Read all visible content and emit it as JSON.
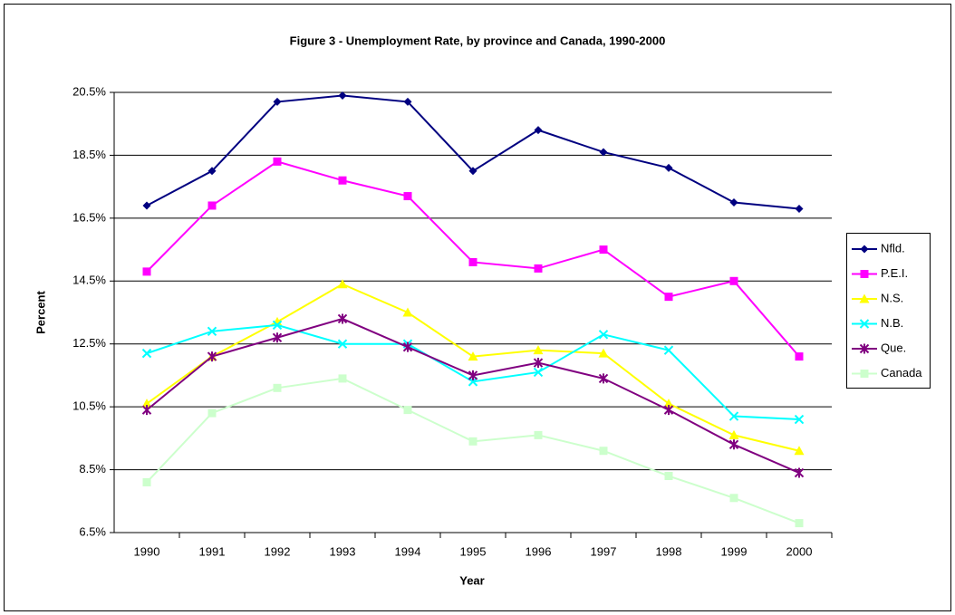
{
  "chart_data": {
    "type": "line",
    "title": "Figure 3 - Unemployment Rate, by province and Canada, 1990-2000",
    "xlabel": "Year",
    "ylabel": "Percent",
    "categories": [
      "1990",
      "1991",
      "1992",
      "1993",
      "1994",
      "1995",
      "1996",
      "1997",
      "1998",
      "1999",
      "2000"
    ],
    "ylim": [
      6.5,
      20.5
    ],
    "yticks": [
      {
        "value": 6.5,
        "label": "6.5%"
      },
      {
        "value": 8.5,
        "label": "8.5%"
      },
      {
        "value": 10.5,
        "label": "10.5%"
      },
      {
        "value": 12.5,
        "label": "12.5%"
      },
      {
        "value": 14.5,
        "label": "14.5%"
      },
      {
        "value": 16.5,
        "label": "16.5%"
      },
      {
        "value": 18.5,
        "label": "18.5%"
      },
      {
        "value": 20.5,
        "label": "20.5%"
      }
    ],
    "grid": true,
    "legend": "right",
    "series": [
      {
        "name": "Nfld.",
        "color": "#000080",
        "marker": "diamond",
        "values": [
          16.9,
          18.0,
          20.2,
          20.4,
          20.2,
          18.0,
          19.3,
          18.6,
          18.1,
          17.0,
          16.8
        ]
      },
      {
        "name": "P.E.I.",
        "color": "#ff00ff",
        "marker": "square",
        "values": [
          14.8,
          16.9,
          18.3,
          17.7,
          17.2,
          15.1,
          14.9,
          15.5,
          14.0,
          14.5,
          12.1
        ]
      },
      {
        "name": "N.S.",
        "color": "#ffff00",
        "marker": "triangle",
        "values": [
          10.6,
          12.1,
          13.2,
          14.4,
          13.5,
          12.1,
          12.3,
          12.2,
          10.6,
          9.6,
          9.1
        ]
      },
      {
        "name": "N.B.",
        "color": "#00ffff",
        "marker": "x",
        "values": [
          12.2,
          12.9,
          13.1,
          12.5,
          12.5,
          11.3,
          11.6,
          12.8,
          12.3,
          10.2,
          10.1
        ]
      },
      {
        "name": "Que.",
        "color": "#800080",
        "marker": "star",
        "values": [
          10.4,
          12.1,
          12.7,
          13.3,
          12.4,
          11.5,
          11.9,
          11.4,
          10.4,
          9.3,
          8.4
        ]
      },
      {
        "name": "Canada",
        "color": "#ccffcc",
        "marker": "square",
        "values": [
          8.1,
          10.3,
          11.1,
          11.4,
          10.4,
          9.4,
          9.6,
          9.1,
          8.3,
          7.6,
          6.8
        ]
      }
    ]
  }
}
